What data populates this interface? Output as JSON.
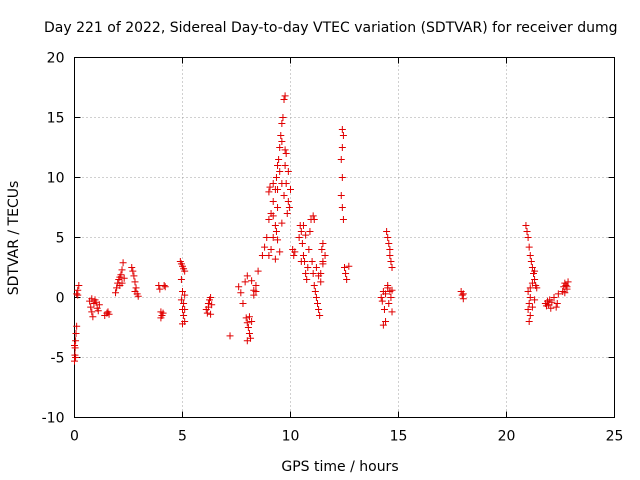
{
  "chart_data": {
    "type": "scatter",
    "title": "Day 221 of 2022, Sidereal Day-to-day VTEC variation (SDTVAR) for receiver dumg",
    "xlabel": "GPS time / hours",
    "ylabel": "SDTVAR / TECUs",
    "xlim": [
      0,
      25
    ],
    "ylim": [
      -10,
      20
    ],
    "xticks": [
      0,
      5,
      10,
      15,
      20,
      25
    ],
    "yticks": [
      -10,
      -5,
      0,
      5,
      10,
      15,
      20
    ],
    "xtick_labels": [
      "0",
      "5",
      "10",
      "15",
      "20",
      "25"
    ],
    "ytick_labels": [
      "-10",
      "-5",
      "0",
      "5",
      "10",
      "15",
      "20"
    ],
    "grid": true,
    "marker": "+",
    "marker_color": "#e00000",
    "series": [
      {
        "name": "dumg",
        "points": [
          [
            0.0,
            -5.3
          ],
          [
            0.02,
            -4.8
          ],
          [
            0.03,
            -4.2
          ],
          [
            0.05,
            -3.6
          ],
          [
            0.07,
            -3.0
          ],
          [
            0.1,
            -2.4
          ],
          [
            0.0,
            -4.0
          ],
          [
            0.05,
            -5.0
          ],
          [
            0.1,
            0.3
          ],
          [
            0.15,
            0.6
          ],
          [
            0.2,
            1.0
          ],
          [
            0.15,
            0.2
          ],
          [
            0.7,
            -0.3
          ],
          [
            0.75,
            -0.8
          ],
          [
            0.8,
            -1.2
          ],
          [
            0.85,
            -1.6
          ],
          [
            0.9,
            -0.5
          ],
          [
            0.95,
            -0.2
          ],
          [
            1.0,
            -0.4
          ],
          [
            1.05,
            -0.9
          ],
          [
            1.1,
            -1.1
          ],
          [
            1.15,
            -0.6
          ],
          [
            0.8,
            -0.1
          ],
          [
            1.4,
            -1.5
          ],
          [
            1.5,
            -1.3
          ],
          [
            1.55,
            -1.2
          ],
          [
            1.6,
            -1.4
          ],
          [
            1.9,
            0.4
          ],
          [
            1.95,
            0.8
          ],
          [
            2.0,
            1.2
          ],
          [
            2.05,
            1.5
          ],
          [
            2.1,
            1.7
          ],
          [
            2.15,
            1.9
          ],
          [
            2.2,
            2.3
          ],
          [
            2.25,
            2.9
          ],
          [
            2.2,
            1.2
          ],
          [
            2.1,
            1.0
          ],
          [
            2.3,
            1.6
          ],
          [
            2.65,
            2.5
          ],
          [
            2.7,
            2.2
          ],
          [
            2.75,
            1.8
          ],
          [
            2.8,
            1.3
          ],
          [
            2.85,
            0.8
          ],
          [
            2.9,
            0.3
          ],
          [
            2.95,
            0.1
          ],
          [
            2.8,
            0.5
          ],
          [
            3.9,
            1.0
          ],
          [
            3.95,
            0.7
          ],
          [
            4.0,
            -1.2
          ],
          [
            4.05,
            -1.5
          ],
          [
            4.0,
            -1.7
          ],
          [
            4.1,
            -1.3
          ],
          [
            4.2,
            0.9
          ],
          [
            4.15,
            1.0
          ],
          [
            4.9,
            3.0
          ],
          [
            4.95,
            2.8
          ],
          [
            5.0,
            2.6
          ],
          [
            5.05,
            2.4
          ],
          [
            5.1,
            2.2
          ],
          [
            4.95,
            1.5
          ],
          [
            5.0,
            0.5
          ],
          [
            5.05,
            -0.5
          ],
          [
            5.0,
            -1.0
          ],
          [
            5.05,
            -1.5
          ],
          [
            5.1,
            -2.0
          ],
          [
            4.95,
            -0.2
          ],
          [
            5.1,
            -1.0
          ],
          [
            5.0,
            -2.2
          ],
          [
            5.1,
            0.2
          ],
          [
            6.1,
            -1.0
          ],
          [
            6.15,
            -1.3
          ],
          [
            6.2,
            -0.8
          ],
          [
            6.25,
            -0.2
          ],
          [
            6.3,
            0.0
          ],
          [
            6.35,
            -0.6
          ],
          [
            6.3,
            -1.4
          ],
          [
            6.2,
            -0.5
          ],
          [
            7.2,
            -3.2
          ],
          [
            7.6,
            0.9
          ],
          [
            7.7,
            0.4
          ],
          [
            7.8,
            -0.5
          ],
          [
            7.9,
            1.3
          ],
          [
            8.0,
            1.8
          ],
          [
            7.95,
            -1.7
          ],
          [
            8.0,
            -2.1
          ],
          [
            8.05,
            -2.5
          ],
          [
            8.1,
            -3.0
          ],
          [
            8.15,
            -3.4
          ],
          [
            8.0,
            -3.6
          ],
          [
            8.2,
            -2.0
          ],
          [
            8.1,
            -1.6
          ],
          [
            8.3,
            0.2
          ],
          [
            8.4,
            0.5
          ],
          [
            8.5,
            2.2
          ],
          [
            8.4,
            1.0
          ],
          [
            8.2,
            1.4
          ],
          [
            8.3,
            0.6
          ],
          [
            8.7,
            3.5
          ],
          [
            8.8,
            4.2
          ],
          [
            8.9,
            5.0
          ],
          [
            9.0,
            6.5
          ],
          [
            9.1,
            7.0
          ],
          [
            9.2,
            8.0
          ],
          [
            9.3,
            9.0
          ],
          [
            9.35,
            10.0
          ],
          [
            9.4,
            11.0
          ],
          [
            9.45,
            11.5
          ],
          [
            9.5,
            12.5
          ],
          [
            9.55,
            13.5
          ],
          [
            9.6,
            14.5
          ],
          [
            9.65,
            15.0
          ],
          [
            9.7,
            16.5
          ],
          [
            9.75,
            16.8
          ],
          [
            9.8,
            12.0
          ],
          [
            9.75,
            11.0
          ],
          [
            9.8,
            9.5
          ],
          [
            9.9,
            8.0
          ],
          [
            9.85,
            7.0
          ],
          [
            9.7,
            8.5
          ],
          [
            9.6,
            9.5
          ],
          [
            9.5,
            10.5
          ],
          [
            9.4,
            7.5
          ],
          [
            9.3,
            6.0
          ],
          [
            9.2,
            5.0
          ],
          [
            9.1,
            4.0
          ],
          [
            9.0,
            3.5
          ],
          [
            9.0,
            8.8
          ],
          [
            9.05,
            9.2
          ],
          [
            9.2,
            9.5
          ],
          [
            9.4,
            9.0
          ],
          [
            9.6,
            13.0
          ],
          [
            9.75,
            12.3
          ],
          [
            9.9,
            10.5
          ],
          [
            10.0,
            9.0
          ],
          [
            9.95,
            7.5
          ],
          [
            9.6,
            6.2
          ],
          [
            9.4,
            4.8
          ],
          [
            9.3,
            3.2
          ],
          [
            9.5,
            3.8
          ],
          [
            9.2,
            6.8
          ],
          [
            9.35,
            5.5
          ],
          [
            10.1,
            4.0
          ],
          [
            10.15,
            3.5
          ],
          [
            10.2,
            3.8
          ],
          [
            10.4,
            5.0
          ],
          [
            10.45,
            6.0
          ],
          [
            10.5,
            5.5
          ],
          [
            10.55,
            4.5
          ],
          [
            10.6,
            3.5
          ],
          [
            10.65,
            3.0
          ],
          [
            10.7,
            2.0
          ],
          [
            10.75,
            1.5
          ],
          [
            10.8,
            2.5
          ],
          [
            10.85,
            4.0
          ],
          [
            10.9,
            5.5
          ],
          [
            10.95,
            6.5
          ],
          [
            11.0,
            3.0
          ],
          [
            11.05,
            2.0
          ],
          [
            11.1,
            1.0
          ],
          [
            11.15,
            0.5
          ],
          [
            11.2,
            0.0
          ],
          [
            11.25,
            -0.5
          ],
          [
            11.3,
            -1.0
          ],
          [
            11.35,
            -1.5
          ],
          [
            11.3,
            1.8
          ],
          [
            11.2,
            2.5
          ],
          [
            11.4,
            2.0
          ],
          [
            11.5,
            3.0
          ],
          [
            11.6,
            3.5
          ],
          [
            11.1,
            6.5
          ],
          [
            11.05,
            6.8
          ],
          [
            10.6,
            6.0
          ],
          [
            10.7,
            5.2
          ],
          [
            10.5,
            3.0
          ],
          [
            11.4,
            1.3
          ],
          [
            11.5,
            2.8
          ],
          [
            11.5,
            4.5
          ],
          [
            11.45,
            4.0
          ],
          [
            12.4,
            14.0
          ],
          [
            12.45,
            13.5
          ],
          [
            12.4,
            12.5
          ],
          [
            12.35,
            11.5
          ],
          [
            12.4,
            10.0
          ],
          [
            12.35,
            8.5
          ],
          [
            12.4,
            7.5
          ],
          [
            12.45,
            6.5
          ],
          [
            12.5,
            2.5
          ],
          [
            12.55,
            2.0
          ],
          [
            12.6,
            1.5
          ],
          [
            12.7,
            2.6
          ],
          [
            14.2,
            0.0
          ],
          [
            14.25,
            -0.3
          ],
          [
            14.3,
            0.5
          ],
          [
            14.35,
            -1.0
          ],
          [
            14.4,
            -2.0
          ],
          [
            14.3,
            -2.3
          ],
          [
            14.45,
            5.5
          ],
          [
            14.5,
            5.0
          ],
          [
            14.55,
            4.5
          ],
          [
            14.6,
            4.0
          ],
          [
            14.6,
            3.5
          ],
          [
            14.65,
            3.0
          ],
          [
            14.7,
            2.5
          ],
          [
            14.5,
            1.0
          ],
          [
            14.6,
            0.5
          ],
          [
            14.65,
            0.0
          ],
          [
            14.55,
            -0.5
          ],
          [
            14.7,
            -1.2
          ],
          [
            14.4,
            0.3
          ],
          [
            14.5,
            0.8
          ],
          [
            14.7,
            0.6
          ],
          [
            17.9,
            0.5
          ],
          [
            17.95,
            0.2
          ],
          [
            18.0,
            -0.1
          ],
          [
            18.0,
            0.3
          ],
          [
            20.9,
            6.0
          ],
          [
            20.95,
            5.5
          ],
          [
            21.0,
            5.0
          ],
          [
            21.05,
            4.2
          ],
          [
            21.1,
            3.5
          ],
          [
            21.15,
            3.0
          ],
          [
            21.2,
            2.5
          ],
          [
            21.25,
            2.0
          ],
          [
            21.3,
            1.5
          ],
          [
            21.35,
            1.0
          ],
          [
            21.0,
            0.5
          ],
          [
            21.1,
            0.0
          ],
          [
            21.05,
            -0.5
          ],
          [
            21.0,
            -1.0
          ],
          [
            21.1,
            -1.5
          ],
          [
            21.05,
            -2.0
          ],
          [
            21.2,
            -0.8
          ],
          [
            21.3,
            -0.2
          ],
          [
            21.4,
            0.8
          ],
          [
            21.3,
            2.2
          ],
          [
            21.2,
            1.2
          ],
          [
            21.1,
            0.8
          ],
          [
            21.8,
            -0.5
          ],
          [
            21.85,
            -0.7
          ],
          [
            21.9,
            -0.3
          ],
          [
            21.95,
            -0.6
          ],
          [
            22.0,
            -0.2
          ],
          [
            22.05,
            -0.9
          ],
          [
            22.1,
            -0.4
          ],
          [
            22.2,
            0.0
          ],
          [
            22.3,
            -0.8
          ],
          [
            22.35,
            -0.5
          ],
          [
            22.4,
            0.3
          ],
          [
            22.6,
            0.5
          ],
          [
            22.65,
            0.9
          ],
          [
            22.7,
            1.2
          ],
          [
            22.75,
            1.0
          ],
          [
            22.8,
            0.7
          ],
          [
            22.85,
            1.3
          ],
          [
            22.7,
            0.4
          ],
          [
            22.8,
            0.9
          ]
        ]
      }
    ]
  }
}
